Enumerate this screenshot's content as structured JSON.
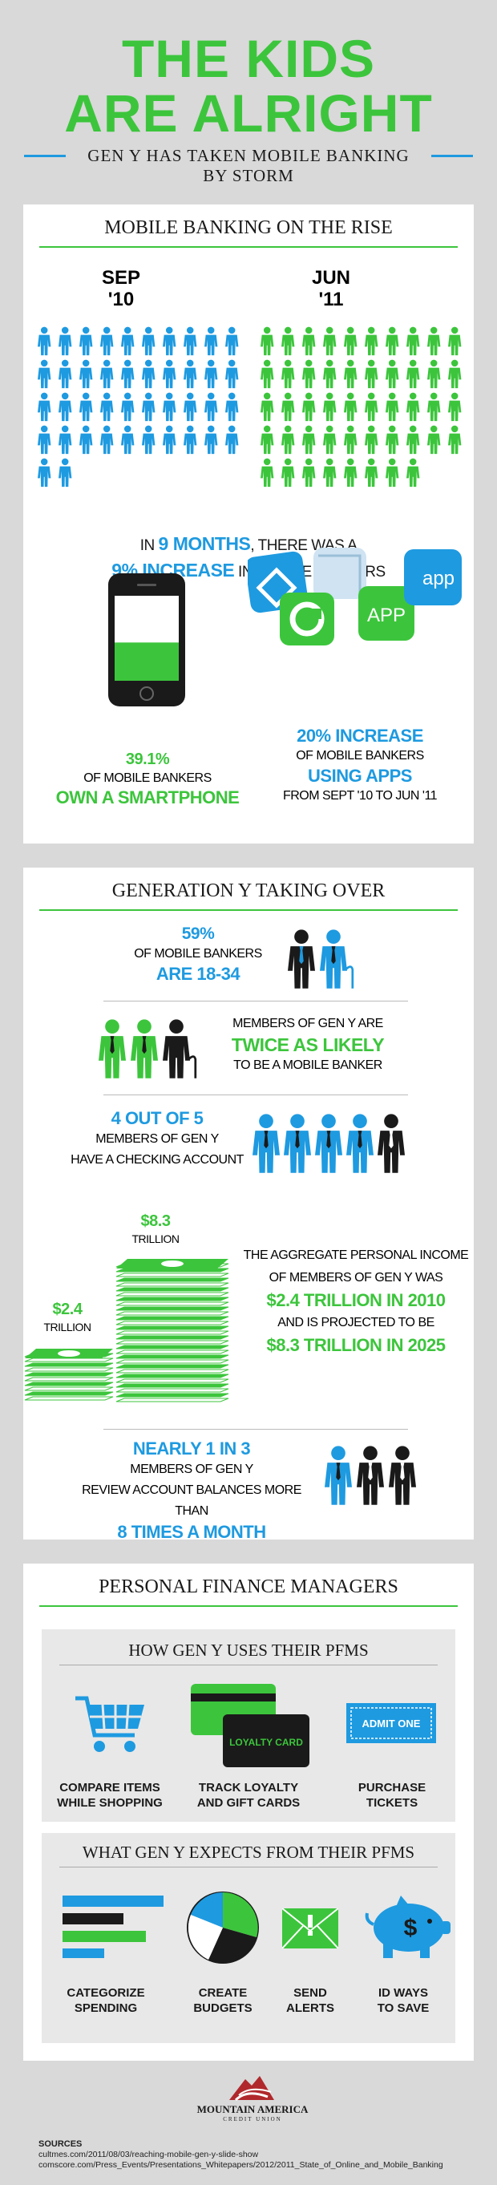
{
  "header": {
    "title_line1": "THE KIDS",
    "title_line2": "ARE ALRIGHT",
    "subtitle": "GEN Y HAS TAKEN MOBILE BANKING BY STORM"
  },
  "section1": {
    "heading": "MOBILE BANKING ON THE RISE",
    "left_label_top": "SEP",
    "left_label_bottom": "'10",
    "right_label_top": "JUN",
    "right_label_bottom": "'11",
    "stat_line1_pre": "IN ",
    "stat_line1_hl": "9 MONTHS",
    "stat_line1_post": ", THERE WAS A",
    "stat_line2_hl": "9% INCREASE",
    "stat_line2_post": " IN MOBILE BANKERS",
    "phone_pct": "39.1%",
    "phone_mid": "OF MOBILE BANKERS",
    "phone_bottom": "OWN A SMARTPHONE",
    "apps_top": "20% INCREASE",
    "apps_mid": "OF MOBILE BANKERS",
    "apps_hl": "USING APPS",
    "apps_bottom": "FROM SEPT '10 TO JUN '11",
    "app_badge": "APP",
    "app_badge2": "app",
    "phone_battery_fill": 0.45
  },
  "section2": {
    "heading": "GENERATION Y TAKING OVER",
    "s1_pct": "59%",
    "s1_mid": "OF MOBILE BANKERS",
    "s1_hl": "ARE 18-34",
    "s2_top": "MEMBERS OF GEN Y ARE",
    "s2_hl": "TWICE AS LIKELY",
    "s2_bottom": "TO BE A MOBILE BANKER",
    "s3_hl": "4 OUT OF 5",
    "s3_mid": "MEMBERS OF GEN Y",
    "s3_bottom": "HAVE A CHECKING ACCOUNT",
    "cash_small_val": "$2.4",
    "cash_small_unit": "TRILLION",
    "cash_big_val": "$8.3",
    "cash_big_unit": "TRILLION",
    "s4_l1": "THE AGGREGATE PERSONAL INCOME",
    "s4_l2": "OF MEMBERS OF GEN Y WAS",
    "s4_hl1": "$2.4 TRILLION IN 2010",
    "s4_l3": "AND IS PROJECTED TO BE",
    "s4_hl2": "$8.3 TRILLION IN 2025",
    "s5_hl": "NEARLY 1 IN 3",
    "s5_l1": "MEMBERS OF GEN Y",
    "s5_l2": "REVIEW ACCOUNT BALANCES MORE THAN",
    "s5_hl2": "8 TIMES A MONTH"
  },
  "section3": {
    "heading": "PERSONAL FINANCE MANAGERS",
    "panel1_heading": "HOW GEN Y USES THEIR PFMS",
    "uses": [
      {
        "line1": "COMPARE ITEMS",
        "line2": "WHILE SHOPPING"
      },
      {
        "line1": "TRACK LOYALTY",
        "line2": "AND GIFT CARDS"
      },
      {
        "line1": "PURCHASE",
        "line2": "TICKETS"
      }
    ],
    "loyalty_card_text": "LOYALTY CARD",
    "ticket_text": "ADMIT ONE",
    "panel2_heading": "WHAT GEN Y EXPECTS FROM THEIR PFMS",
    "expects": [
      {
        "line1": "CATEGORIZE",
        "line2": "SPENDING"
      },
      {
        "line1": "CREATE",
        "line2": "BUDGETS"
      },
      {
        "line1": "SEND",
        "line2": "ALERTS"
      },
      {
        "line1": "ID WAYS",
        "line2": "TO SAVE"
      }
    ]
  },
  "footer": {
    "logo_line1": "MOUNTAIN AMERICA",
    "logo_line2": "CREDIT UNION",
    "sources_label": "SOURCES",
    "source1": "cultmes.com/2011/08/03/reaching-mobile-gen-y-slide-show",
    "source2": "comscore.com/Press_Events/Presentations_Whitepapers/2012/2011_State_of_Online_and_Mobile_Banking"
  },
  "colors": {
    "green": "#3cc53c",
    "blue": "#1e9ae0",
    "dark": "#1a1a1a",
    "background": "#d9d9d9"
  },
  "people_counts": {
    "sep10": 42,
    "jun11": 48
  }
}
